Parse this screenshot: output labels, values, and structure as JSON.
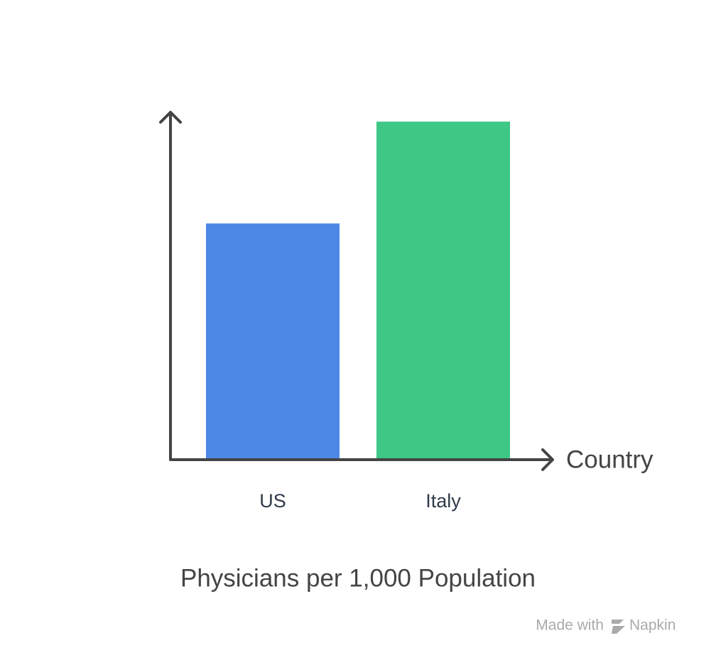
{
  "chart_data": {
    "type": "bar",
    "title": "Physicians per 1,000 Population",
    "x_label": "Country",
    "categories": [
      "US",
      "Italy"
    ],
    "values": [
      2.97,
      4.25
    ],
    "colors": [
      "#4d88e6",
      "#3ec785"
    ],
    "ylim": [
      0,
      4.35
    ]
  },
  "footer": {
    "prefix": "Made with",
    "brand": "Napkin"
  }
}
